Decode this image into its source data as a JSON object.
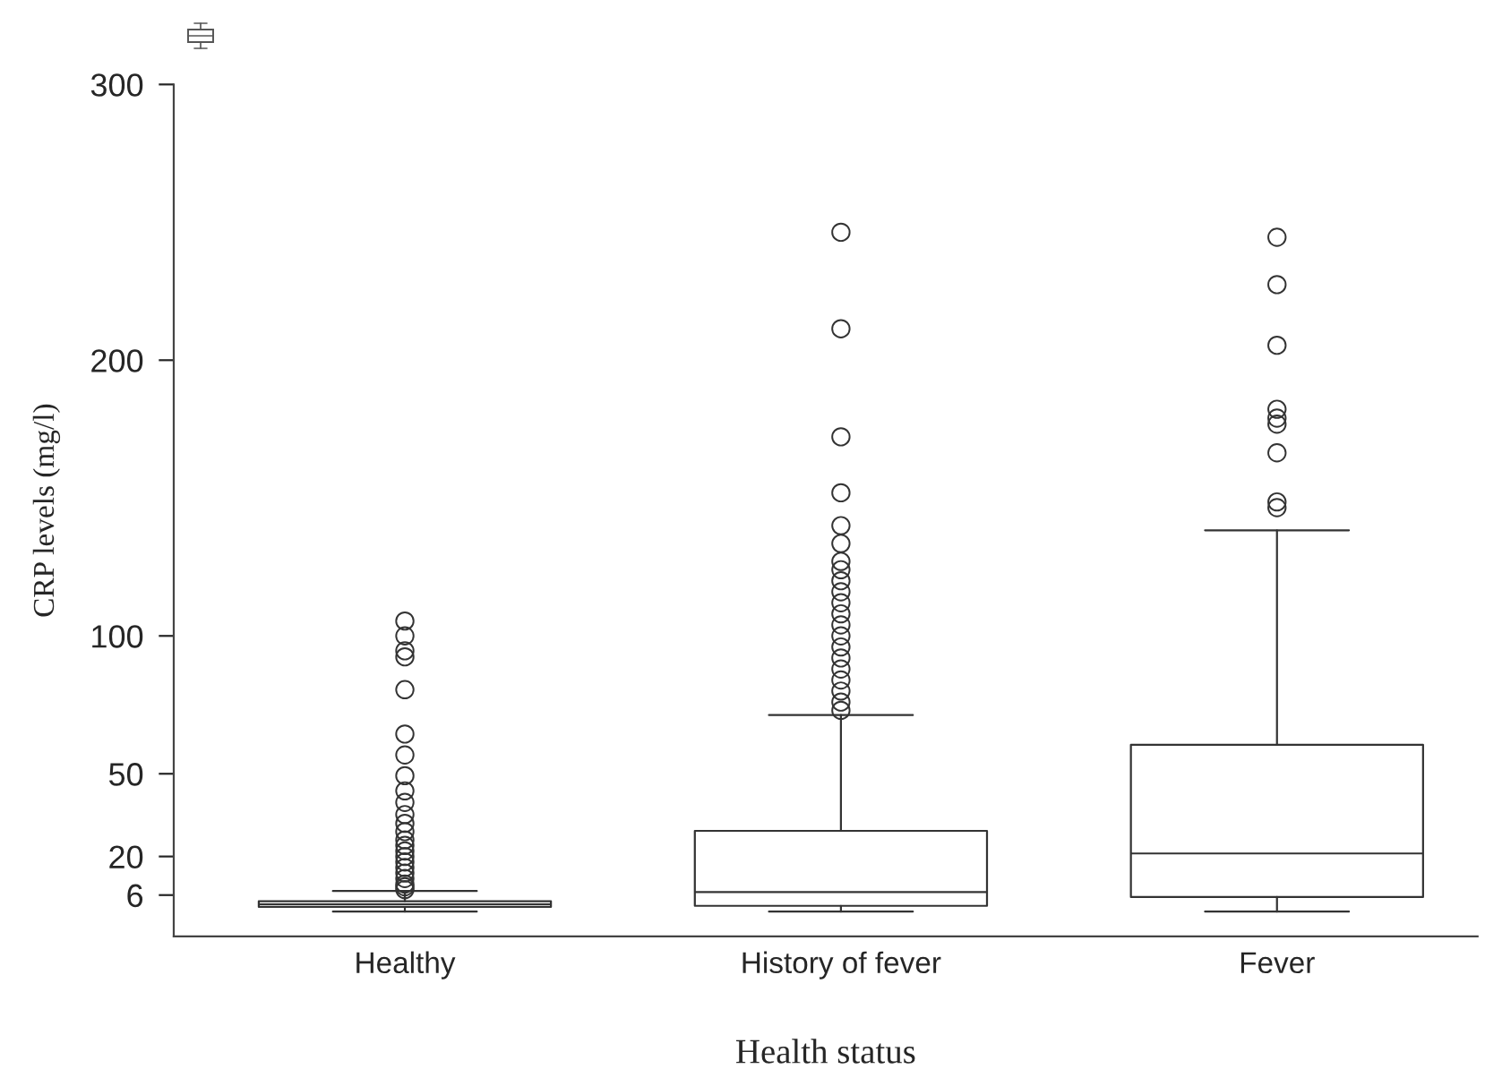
{
  "chart_data": {
    "type": "box",
    "xlabel": "Health status",
    "ylabel": "CRP levels (mg/l)",
    "categories": [
      "Healthy",
      "History of fever",
      "Fever"
    ],
    "color": "#333333",
    "marker": "circle",
    "boxes": [
      {
        "low": 0,
        "q1": 1.7,
        "median": 2.6,
        "q3": 3.8,
        "high": 7.5,
        "outliers": [
          105.4,
          100,
          94.6,
          92.4,
          80.5,
          64.4,
          56.8,
          49.3,
          43.8,
          39.6,
          35.2,
          32,
          29,
          26,
          24,
          22,
          20,
          18,
          16,
          14,
          12,
          10,
          9,
          8
        ]
      },
      {
        "low": 0,
        "q1": 2.1,
        "median": 7.1,
        "q3": 29.3,
        "high": 71.3,
        "outliers": [
          246.4,
          211.4,
          172.2,
          151.9,
          140.0,
          133.5,
          127,
          124,
          120,
          116,
          112,
          108,
          104,
          100,
          96,
          92,
          88,
          84,
          80,
          76,
          73
        ]
      },
      {
        "low": 0,
        "q1": 5.3,
        "median": 21.1,
        "q3": 60.5,
        "high": 138.3,
        "outliers": [
          244.6,
          227.4,
          205.4,
          182.2,
          179.0,
          176.8,
          166.4,
          148.6,
          146.5
        ]
      }
    ],
    "ylim": [
      -9,
      300
    ],
    "yticks": [
      6,
      20,
      50,
      100,
      200,
      300
    ]
  }
}
